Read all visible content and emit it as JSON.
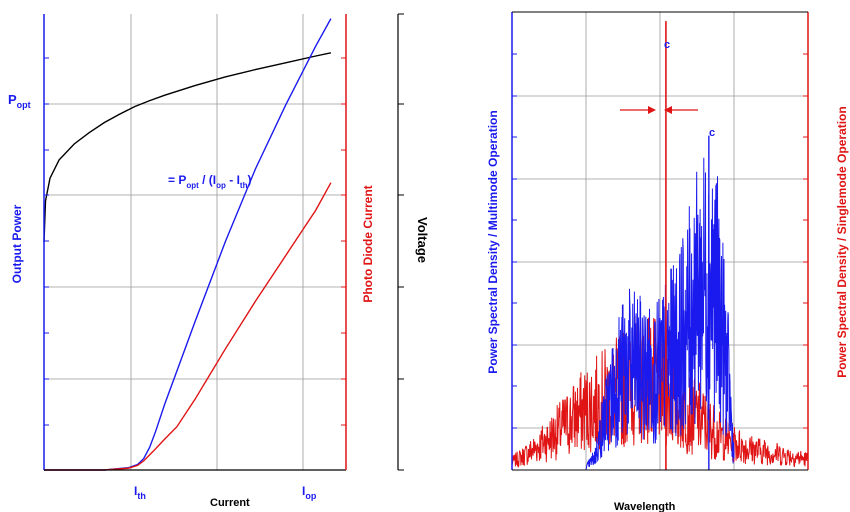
{
  "colors": {
    "blue": "#1a1aee",
    "red": "#e01414",
    "black": "#000000",
    "grid": "#9a9a9a"
  },
  "left_annotations": {
    "p_opt": "P",
    "p_opt_sub": "opt",
    "slope_eq": "= P",
    "slope_sub1": "opt",
    "slope_mid": " / (I",
    "slope_sub2": "op",
    "slope_minus": " - I",
    "slope_sub3": "th",
    "slope_end": ")"
  },
  "right_annotations": {
    "peak_label_1": "c",
    "peak_label_2": "c"
  },
  "chart_data": [
    {
      "type": "line",
      "title": "",
      "xlabel": "Current",
      "ylabel": "Output Power",
      "ylabel_right": "Photo Diode Current",
      "ylabel_far_right": "Voltage",
      "xlim": [
        0,
        1
      ],
      "ylim": [
        0,
        1
      ],
      "grid": true,
      "x_tick_labels": [
        {
          "main": "I",
          "sub": "th",
          "x": 0.33
        },
        {
          "main": "I",
          "sub": "op",
          "x": 0.92
        }
      ],
      "series": [
        {
          "color": "black",
          "axis": "voltage",
          "x": [
            0,
            0.005,
            0.02,
            0.05,
            0.1,
            0.15,
            0.2,
            0.25,
            0.3,
            0.35,
            0.4,
            0.5,
            0.6,
            0.7,
            0.8,
            0.9,
            0.95
          ],
          "y": [
            0.5,
            0.59,
            0.64,
            0.68,
            0.715,
            0.74,
            0.762,
            0.78,
            0.797,
            0.81,
            0.822,
            0.843,
            0.862,
            0.878,
            0.893,
            0.908,
            0.915
          ]
        },
        {
          "color": "blue",
          "axis": "output-power",
          "x": [
            0,
            0.2,
            0.28,
            0.31,
            0.33,
            0.35,
            0.37,
            0.4,
            0.5,
            0.6,
            0.7,
            0.8,
            0.9,
            0.95
          ],
          "y": [
            0,
            0.0,
            0.005,
            0.012,
            0.025,
            0.05,
            0.085,
            0.145,
            0.325,
            0.5,
            0.66,
            0.8,
            0.93,
            0.99
          ]
        },
        {
          "color": "red",
          "axis": "photo-diode-current",
          "x": [
            0,
            0.2,
            0.28,
            0.31,
            0.33,
            0.36,
            0.4,
            0.44,
            0.5,
            0.6,
            0.7,
            0.8,
            0.9,
            0.95
          ],
          "y": [
            0,
            0.0,
            0.004,
            0.01,
            0.02,
            0.04,
            0.068,
            0.095,
            0.155,
            0.265,
            0.37,
            0.47,
            0.57,
            0.63
          ]
        }
      ]
    },
    {
      "type": "line",
      "title": "",
      "xlabel": "Wavelength",
      "ylabel": "Power Spectral Density / Multimode Operation",
      "ylabel_right": "Power Spectral Density / Singlemode Operation",
      "xlim": [
        0,
        1
      ],
      "ylim": [
        0,
        1
      ],
      "grid": true,
      "series": [
        {
          "color": "blue",
          "envelope_x": [
            0.25,
            0.28,
            0.3,
            0.33,
            0.36,
            0.39,
            0.42,
            0.45,
            0.48,
            0.5,
            0.52,
            0.55,
            0.58,
            0.61,
            0.64,
            0.67,
            0.7,
            0.73,
            0.75
          ],
          "envelope_y": [
            0.01,
            0.05,
            0.14,
            0.26,
            0.35,
            0.4,
            0.39,
            0.37,
            0.36,
            0.38,
            0.42,
            0.46,
            0.52,
            0.61,
            0.7,
            0.74,
            0.62,
            0.35,
            0.05
          ],
          "peak": {
            "x": 0.665,
            "y": 0.73
          }
        },
        {
          "color": "red",
          "envelope_x": [
            0,
            0.05,
            0.1,
            0.15,
            0.2,
            0.25,
            0.3,
            0.35,
            0.4,
            0.45,
            0.5,
            0.55,
            0.6,
            0.65,
            0.7,
            0.75,
            0.8,
            0.85,
            0.9,
            0.95,
            1
          ],
          "envelope_y": [
            0.03,
            0.06,
            0.1,
            0.14,
            0.19,
            0.23,
            0.26,
            0.29,
            0.33,
            0.36,
            0.32,
            0.26,
            0.22,
            0.18,
            0.13,
            0.1,
            0.08,
            0.07,
            0.06,
            0.05,
            0.04
          ],
          "peak": {
            "x": 0.52,
            "y": 0.98
          }
        }
      ]
    }
  ]
}
